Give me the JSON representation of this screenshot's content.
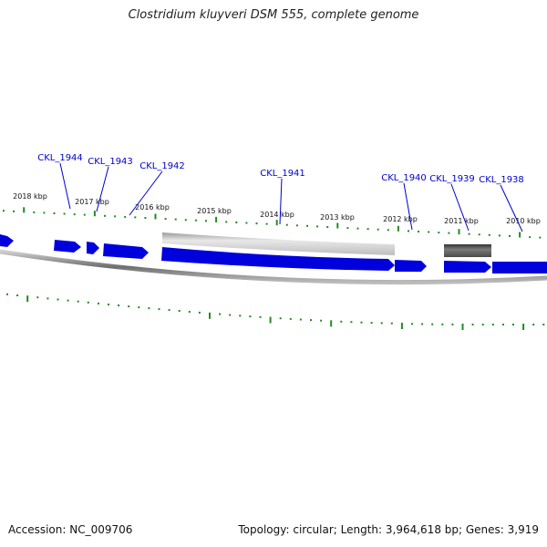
{
  "title": "Clostridium kluyveri DSM 555, complete genome",
  "accession_text": "Accession: NC_009706",
  "summary_text": "Topology: circular; Length: 3,964,618 bp; Genes: 3,919",
  "colors": {
    "gene_forward": "#0000dd",
    "pseudo_light": "#bdbdbd",
    "pseudo_dark": "#555555",
    "genome_line": "#707070",
    "tick": "#228b22",
    "label": "#0000cc"
  },
  "kbp_labels": [
    "2018 kbp",
    "2017 kbp",
    "2016 kbp",
    "2015 kbp",
    "2014 kbp",
    "2013 kbp",
    "2012 kbp",
    "2011 kbp",
    "2010 kbp"
  ],
  "genes": [
    {
      "label": "CKL_1944"
    },
    {
      "label": "CKL_1943"
    },
    {
      "label": "CKL_1942"
    },
    {
      "label": "CKL_1941"
    },
    {
      "label": "CKL_1940"
    },
    {
      "label": "CKL_1939"
    },
    {
      "label": "CKL_1938"
    }
  ]
}
